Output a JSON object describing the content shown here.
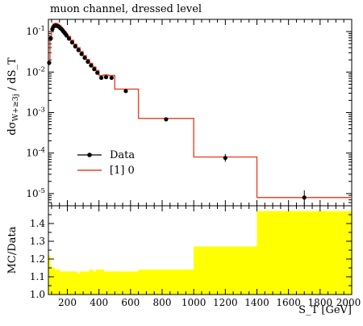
{
  "chart_data": [
    {
      "type": "line",
      "title": "muon channel, dressed level",
      "ylabel": "dσ_{W+≥3j} / dS_T",
      "xlabel": "",
      "xlim": [
        80,
        2000
      ],
      "ylim": [
        5e-06,
        0.2
      ],
      "yscale": "log",
      "ytick_labels": [
        "10^{-5}",
        "10^{-4}",
        "10^{-3}",
        "10^{-2}",
        "10^{-1}"
      ],
      "legend": {
        "placement": "lower-left",
        "entries": [
          "Data",
          "[1] 0"
        ]
      },
      "series": [
        {
          "name": "Data",
          "style": "points-with-error-bars",
          "color": "#000000",
          "x": [
            85,
            95,
            105,
            115,
            125,
            135,
            145,
            155,
            165,
            175,
            185,
            195,
            210,
            230,
            250,
            270,
            290,
            310,
            330,
            350,
            370,
            390,
            415,
            445,
            480,
            570,
            825,
            1200,
            1700
          ],
          "y": [
            0.017,
            0.068,
            0.115,
            0.135,
            0.14,
            0.138,
            0.132,
            0.122,
            0.112,
            0.1,
            0.09,
            0.08,
            0.067,
            0.054,
            0.043,
            0.035,
            0.028,
            0.0225,
            0.018,
            0.0145,
            0.0118,
            0.0096,
            0.0072,
            0.0075,
            0.0072,
            0.0034,
            0.00068,
            7.6e-05,
            8e-06
          ],
          "yerr_factor": [
            1.15,
            1.04,
            1.02,
            1.02,
            1.02,
            1.02,
            1.02,
            1.02,
            1.02,
            1.02,
            1.02,
            1.02,
            1.02,
            1.02,
            1.02,
            1.02,
            1.02,
            1.02,
            1.02,
            1.02,
            1.02,
            1.03,
            1.03,
            1.03,
            1.04,
            1.05,
            1.08,
            1.25,
            1.5
          ]
        },
        {
          "name": "[1] 0",
          "style": "step",
          "color": "#e8432a",
          "edges": [
            80,
            90,
            100,
            110,
            120,
            130,
            140,
            150,
            160,
            170,
            180,
            190,
            200,
            220,
            240,
            260,
            280,
            300,
            320,
            340,
            360,
            380,
            400,
            430,
            460,
            500,
            650,
            1000,
            1400,
            2000
          ],
          "values": [
            0.02,
            0.079,
            0.135,
            0.155,
            0.16,
            0.158,
            0.15,
            0.139,
            0.127,
            0.114,
            0.102,
            0.091,
            0.076,
            0.061,
            0.049,
            0.04,
            0.032,
            0.0255,
            0.0205,
            0.0165,
            0.0134,
            0.0109,
            0.0082,
            0.0085,
            0.0082,
            0.0038,
            0.00072,
            8e-05,
            8e-06
          ]
        }
      ]
    },
    {
      "type": "area",
      "title": "",
      "ylabel": "MC/Data",
      "xlabel": "S_T [GeV]",
      "xlim": [
        80,
        2000
      ],
      "ylim": [
        1.0,
        1.5
      ],
      "x_ticks": [
        200,
        400,
        600,
        800,
        1000,
        1200,
        1400,
        1600,
        1800,
        2000
      ],
      "y_ticks": [
        1.0,
        1.1,
        1.2,
        1.3,
        1.4
      ],
      "x_tick_labels": [
        "200",
        "400",
        "600",
        "800",
        "1000",
        "1200",
        "1400",
        "1600",
        "1800",
        "2000"
      ],
      "y_tick_labels": [
        "1.0",
        "1.1",
        "1.2",
        "1.3",
        "1.4"
      ],
      "series": [
        {
          "name": "",
          "style": "filled-step",
          "color": "#ffff00",
          "edges": [
            80,
            90,
            100,
            110,
            120,
            130,
            140,
            150,
            160,
            170,
            180,
            190,
            200,
            220,
            240,
            260,
            280,
            300,
            320,
            340,
            360,
            380,
            400,
            430,
            460,
            500,
            650,
            1000,
            1400,
            2000
          ],
          "values": [
            1.22,
            1.16,
            1.15,
            1.15,
            1.14,
            1.14,
            1.14,
            1.13,
            1.13,
            1.13,
            1.13,
            1.13,
            1.13,
            1.13,
            1.13,
            1.12,
            1.13,
            1.13,
            1.13,
            1.14,
            1.13,
            1.14,
            1.14,
            1.13,
            1.13,
            1.13,
            1.14,
            1.27,
            1.47
          ]
        }
      ]
    }
  ]
}
